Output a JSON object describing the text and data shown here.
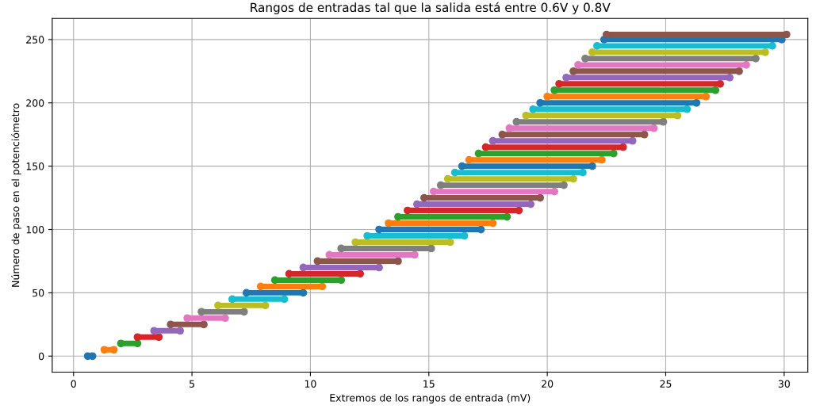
{
  "chart_data": {
    "type": "line",
    "title": "Rangos de entradas tal que la salida está entre 0.6V y 0.8V",
    "xlabel": "Extremos de los rangos de entrada (mV)",
    "ylabel": "Número de paso en el potenciómetro",
    "xlim": [
      -0.9,
      31.0
    ],
    "ylim": [
      -12.7,
      266.7
    ],
    "xticks": [
      0,
      5,
      10,
      15,
      20,
      25,
      30
    ],
    "yticks": [
      0,
      50,
      100,
      150,
      200,
      250
    ],
    "grid": true,
    "marker": "circle",
    "line_style": "solid",
    "series": [
      {
        "color": "#1f77b4",
        "x": [
          0.6,
          0.8
        ],
        "values": [
          0,
          0
        ]
      },
      {
        "color": "#ff7f0e",
        "x": [
          1.3,
          1.7
        ],
        "values": [
          5,
          5
        ]
      },
      {
        "color": "#2ca02c",
        "x": [
          2.0,
          2.7
        ],
        "values": [
          10,
          10
        ]
      },
      {
        "color": "#d62728",
        "x": [
          2.7,
          3.6
        ],
        "values": [
          15,
          15
        ]
      },
      {
        "color": "#9467bd",
        "x": [
          3.4,
          4.5
        ],
        "values": [
          20,
          20
        ]
      },
      {
        "color": "#8c564b",
        "x": [
          4.1,
          5.5
        ],
        "values": [
          25,
          25
        ]
      },
      {
        "color": "#e377c2",
        "x": [
          4.8,
          6.4
        ],
        "values": [
          30,
          30
        ]
      },
      {
        "color": "#7f7f7f",
        "x": [
          5.4,
          7.2
        ],
        "values": [
          35,
          35
        ]
      },
      {
        "color": "#bcbd22",
        "x": [
          6.1,
          8.1
        ],
        "values": [
          40,
          40
        ]
      },
      {
        "color": "#17becf",
        "x": [
          6.7,
          8.9
        ],
        "values": [
          45,
          45
        ]
      },
      {
        "color": "#1f77b4",
        "x": [
          7.3,
          9.7
        ],
        "values": [
          50,
          50
        ]
      },
      {
        "color": "#ff7f0e",
        "x": [
          7.9,
          10.5
        ],
        "values": [
          55,
          55
        ]
      },
      {
        "color": "#2ca02c",
        "x": [
          8.5,
          11.3
        ],
        "values": [
          60,
          60
        ]
      },
      {
        "color": "#d62728",
        "x": [
          9.1,
          12.1
        ],
        "values": [
          65,
          65
        ]
      },
      {
        "color": "#9467bd",
        "x": [
          9.7,
          12.9
        ],
        "values": [
          70,
          70
        ]
      },
      {
        "color": "#8c564b",
        "x": [
          10.3,
          13.7
        ],
        "values": [
          75,
          75
        ]
      },
      {
        "color": "#e377c2",
        "x": [
          10.8,
          14.4
        ],
        "values": [
          80,
          80
        ]
      },
      {
        "color": "#7f7f7f",
        "x": [
          11.3,
          15.1
        ],
        "values": [
          85,
          85
        ]
      },
      {
        "color": "#bcbd22",
        "x": [
          11.9,
          15.9
        ],
        "values": [
          90,
          90
        ]
      },
      {
        "color": "#17becf",
        "x": [
          12.4,
          16.5
        ],
        "values": [
          95,
          95
        ]
      },
      {
        "color": "#1f77b4",
        "x": [
          12.9,
          17.2
        ],
        "values": [
          100,
          100
        ]
      },
      {
        "color": "#ff7f0e",
        "x": [
          13.3,
          17.7
        ],
        "values": [
          105,
          105
        ]
      },
      {
        "color": "#2ca02c",
        "x": [
          13.7,
          18.3
        ],
        "values": [
          110,
          110
        ]
      },
      {
        "color": "#d62728",
        "x": [
          14.1,
          18.8
        ],
        "values": [
          115,
          115
        ]
      },
      {
        "color": "#9467bd",
        "x": [
          14.5,
          19.3
        ],
        "values": [
          120,
          120
        ]
      },
      {
        "color": "#8c564b",
        "x": [
          14.8,
          19.7
        ],
        "values": [
          125,
          125
        ]
      },
      {
        "color": "#e377c2",
        "x": [
          15.2,
          20.3
        ],
        "values": [
          130,
          130
        ]
      },
      {
        "color": "#7f7f7f",
        "x": [
          15.5,
          20.7
        ],
        "values": [
          135,
          135
        ]
      },
      {
        "color": "#bcbd22",
        "x": [
          15.8,
          21.1
        ],
        "values": [
          140,
          140
        ]
      },
      {
        "color": "#17becf",
        "x": [
          16.1,
          21.5
        ],
        "values": [
          145,
          145
        ]
      },
      {
        "color": "#1f77b4",
        "x": [
          16.4,
          21.9
        ],
        "values": [
          150,
          150
        ]
      },
      {
        "color": "#ff7f0e",
        "x": [
          16.7,
          22.3
        ],
        "values": [
          155,
          155
        ]
      },
      {
        "color": "#2ca02c",
        "x": [
          17.1,
          22.8
        ],
        "values": [
          160,
          160
        ]
      },
      {
        "color": "#d62728",
        "x": [
          17.4,
          23.2
        ],
        "values": [
          165,
          165
        ]
      },
      {
        "color": "#9467bd",
        "x": [
          17.7,
          23.6
        ],
        "values": [
          170,
          170
        ]
      },
      {
        "color": "#8c564b",
        "x": [
          18.1,
          24.1
        ],
        "values": [
          175,
          175
        ]
      },
      {
        "color": "#e377c2",
        "x": [
          18.4,
          24.5
        ],
        "values": [
          180,
          180
        ]
      },
      {
        "color": "#7f7f7f",
        "x": [
          18.7,
          24.9
        ],
        "values": [
          185,
          185
        ]
      },
      {
        "color": "#bcbd22",
        "x": [
          19.1,
          25.5
        ],
        "values": [
          190,
          190
        ]
      },
      {
        "color": "#17becf",
        "x": [
          19.4,
          25.9
        ],
        "values": [
          195,
          195
        ]
      },
      {
        "color": "#1f77b4",
        "x": [
          19.7,
          26.3
        ],
        "values": [
          200,
          200
        ]
      },
      {
        "color": "#ff7f0e",
        "x": [
          20.0,
          26.7
        ],
        "values": [
          205,
          205
        ]
      },
      {
        "color": "#2ca02c",
        "x": [
          20.3,
          27.1
        ],
        "values": [
          210,
          210
        ]
      },
      {
        "color": "#d62728",
        "x": [
          20.5,
          27.3
        ],
        "values": [
          215,
          215
        ]
      },
      {
        "color": "#9467bd",
        "x": [
          20.8,
          27.7
        ],
        "values": [
          220,
          220
        ]
      },
      {
        "color": "#8c564b",
        "x": [
          21.1,
          28.1
        ],
        "values": [
          225,
          225
        ]
      },
      {
        "color": "#e377c2",
        "x": [
          21.3,
          28.4
        ],
        "values": [
          230,
          230
        ]
      },
      {
        "color": "#7f7f7f",
        "x": [
          21.6,
          28.8
        ],
        "values": [
          235,
          235
        ]
      },
      {
        "color": "#bcbd22",
        "x": [
          21.9,
          29.2
        ],
        "values": [
          240,
          240
        ]
      },
      {
        "color": "#17becf",
        "x": [
          22.1,
          29.5
        ],
        "values": [
          245,
          245
        ]
      },
      {
        "color": "#1f77b4",
        "x": [
          22.4,
          29.9
        ],
        "values": [
          250,
          250
        ]
      },
      {
        "color": "#8c564b",
        "x": [
          22.5,
          30.1
        ],
        "values": [
          254,
          254
        ]
      }
    ]
  }
}
